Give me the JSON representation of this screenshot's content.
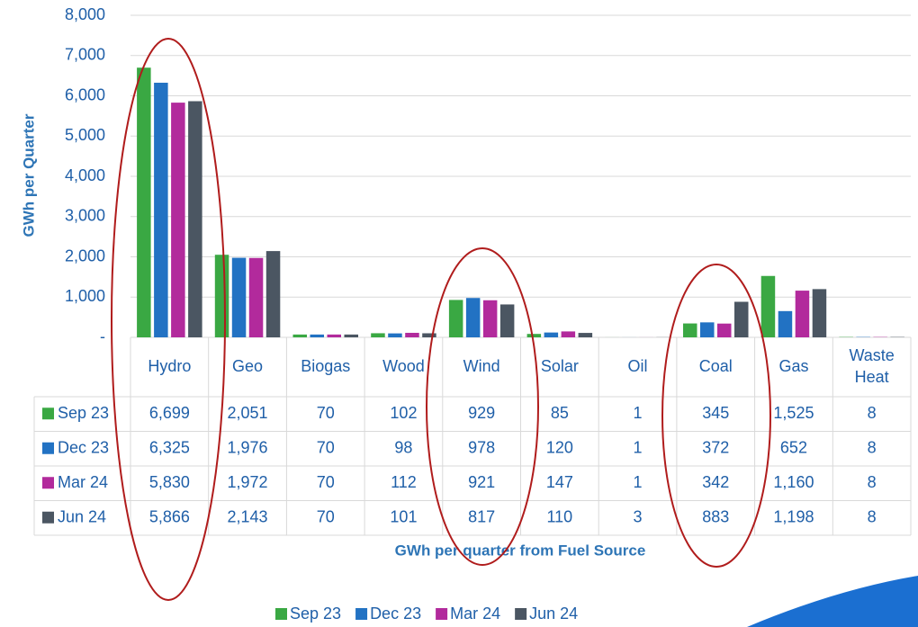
{
  "chart_data": {
    "type": "bar",
    "y_axis_label": "GWh per Quarter",
    "x_axis_label": "GWh per quarter from Fuel Source",
    "categories": [
      "Hydro",
      "Geo",
      "Biogas",
      "Wood",
      "Wind",
      "Solar",
      "Oil",
      "Coal",
      "Gas",
      "Waste Heat"
    ],
    "series": [
      {
        "name": "Sep 23",
        "color": "#3aa843",
        "values": [
          6699,
          2051,
          70,
          102,
          929,
          85,
          1,
          345,
          1525,
          8
        ],
        "value_labels": [
          "6,699",
          "2,051",
          "70",
          "102",
          "929",
          "85",
          "1",
          "345",
          "1,525",
          "8"
        ]
      },
      {
        "name": "Dec 23",
        "color": "#2272c3",
        "values": [
          6325,
          1976,
          70,
          98,
          978,
          120,
          1,
          372,
          652,
          8
        ],
        "value_labels": [
          "6,325",
          "1,976",
          "70",
          "98",
          "978",
          "120",
          "1",
          "372",
          "652",
          "8"
        ]
      },
      {
        "name": "Mar 24",
        "color": "#b22a9c",
        "values": [
          5830,
          1972,
          70,
          112,
          921,
          147,
          1,
          342,
          1160,
          8
        ],
        "value_labels": [
          "5,830",
          "1,972",
          "70",
          "112",
          "921",
          "147",
          "1",
          "342",
          "1,160",
          "8"
        ]
      },
      {
        "name": "Jun 24",
        "color": "#4b5662",
        "values": [
          5866,
          2143,
          70,
          101,
          817,
          110,
          3,
          883,
          1198,
          8
        ],
        "value_labels": [
          "5,866",
          "2,143",
          "70",
          "101",
          "817",
          "110",
          "3",
          "883",
          "1,198",
          "8"
        ]
      }
    ],
    "ylim": [
      0,
      8000
    ],
    "yticks": [
      {
        "value": 0,
        "label": "-"
      },
      {
        "value": 1000,
        "label": "1,000"
      },
      {
        "value": 2000,
        "label": "2,000"
      },
      {
        "value": 3000,
        "label": "3,000"
      },
      {
        "value": 4000,
        "label": "4,000"
      },
      {
        "value": 5000,
        "label": "5,000"
      },
      {
        "value": 6000,
        "label": "6,000"
      },
      {
        "value": 7000,
        "label": "7,000"
      },
      {
        "value": 8000,
        "label": "8,000"
      }
    ],
    "grid": true,
    "legend": "bottom"
  }
}
